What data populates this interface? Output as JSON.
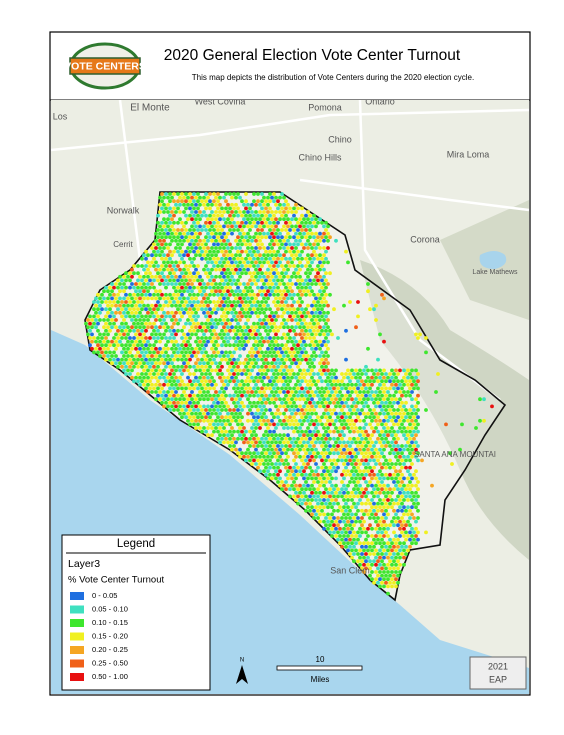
{
  "header": {
    "logo_text": "VOTE CENTERS",
    "title": "2020 General Election Vote Center Turnout",
    "subtitle": "This map depicts the distribution of Vote Centers during the 2020 election cycle."
  },
  "map": {
    "places": [
      "El Monte",
      "West Covina",
      "Pomona",
      "Ontario",
      "Chino",
      "Chino Hills",
      "Mira Loma",
      "Norwalk",
      "Corona",
      "Lake Mathews",
      "San Clem",
      "Los",
      "Cerrit",
      "SANTA ANA MOUNTAI"
    ]
  },
  "legend": {
    "title": "Legend",
    "layer": "Layer3",
    "field": "% Vote Center Turnout",
    "classes": [
      {
        "label": "0 - 0.05",
        "color": "#1f6fe0"
      },
      {
        "label": "0.05 - 0.10",
        "color": "#3fe0c0"
      },
      {
        "label": "0.10 - 0.15",
        "color": "#3ee62e"
      },
      {
        "label": "0.15 - 0.20",
        "color": "#f0f020"
      },
      {
        "label": "0.20 - 0.25",
        "color": "#f5a623"
      },
      {
        "label": "0.25 - 0.50",
        "color": "#f06018"
      },
      {
        "label": "0.50 - 1.00",
        "color": "#e81010"
      }
    ]
  },
  "scale_bar": {
    "distance": "10",
    "unit": "Miles"
  },
  "north_arrow": "N",
  "credit": [
    "2021",
    "EAP"
  ]
}
